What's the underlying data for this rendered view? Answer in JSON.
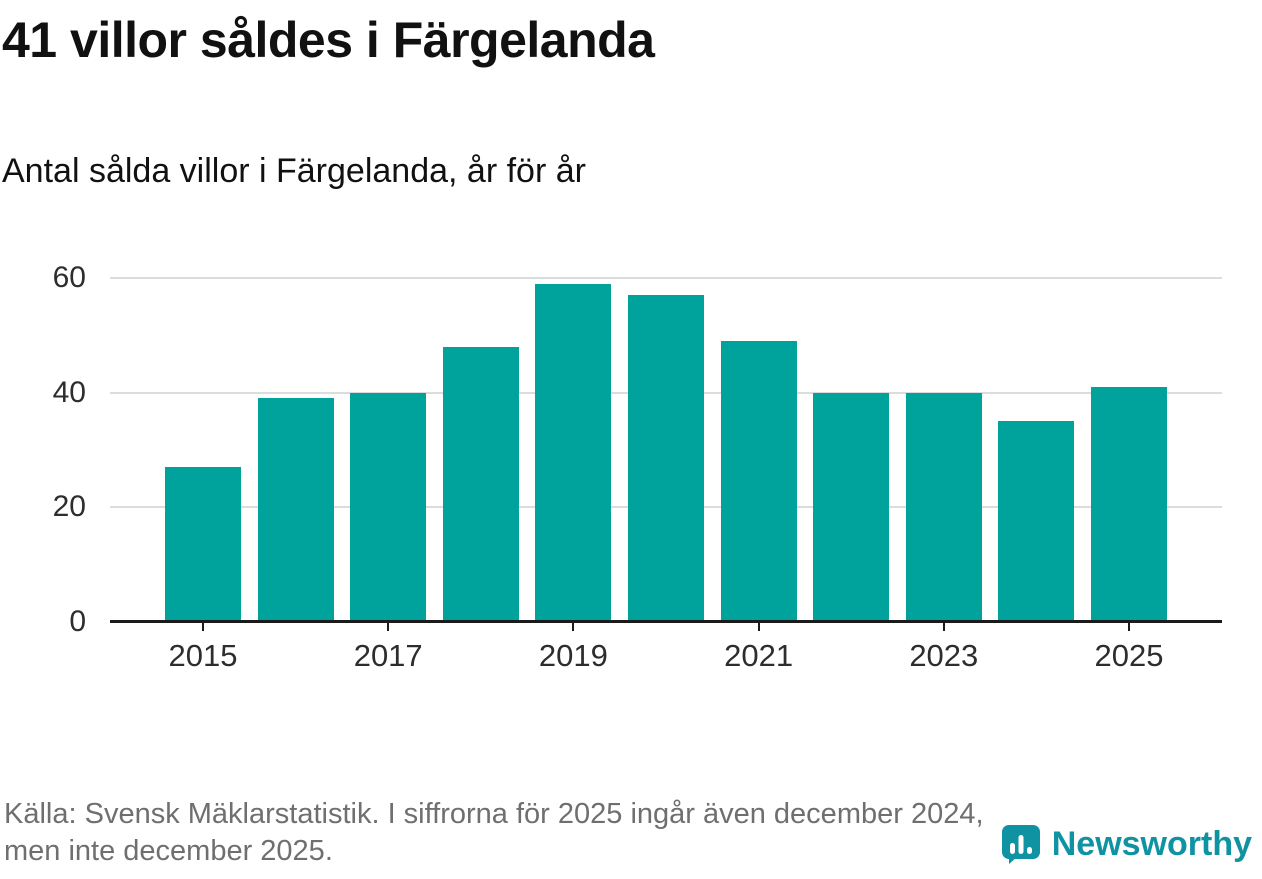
{
  "header": {
    "title": "41 villor såldes i Färgelanda",
    "subtitle": "Antal sålda villor i Färgelanda, år för år"
  },
  "chart_data": {
    "type": "bar",
    "categories": [
      2015,
      2016,
      2017,
      2018,
      2019,
      2020,
      2021,
      2022,
      2023,
      2024,
      2025
    ],
    "values": [
      27,
      39,
      40,
      48,
      59,
      57,
      49,
      40,
      40,
      35,
      41
    ],
    "title": "Antal sålda villor i Färgelanda, år för år",
    "xlabel": "",
    "ylabel": "",
    "ylim": [
      0,
      60
    ],
    "yticks": [
      0,
      20,
      40,
      60
    ],
    "xticks": [
      2015,
      2017,
      2019,
      2021,
      2023,
      2025
    ],
    "grid": true,
    "legend_position": "none",
    "bar_color": "#00a39b"
  },
  "footer": {
    "source_line1": "Källa: Svensk Mäklarstatistik. I siffrorna för 2025 ingår även december 2024,",
    "source_line2": "men inte december 2025.",
    "brand": "Newsworthy"
  },
  "colors": {
    "bar": "#00a39b",
    "brand": "#0f93a3",
    "grid": "#dcdcdc",
    "axis": "#1a1a1a",
    "text": "#111111",
    "muted": "#6f6f6f"
  }
}
